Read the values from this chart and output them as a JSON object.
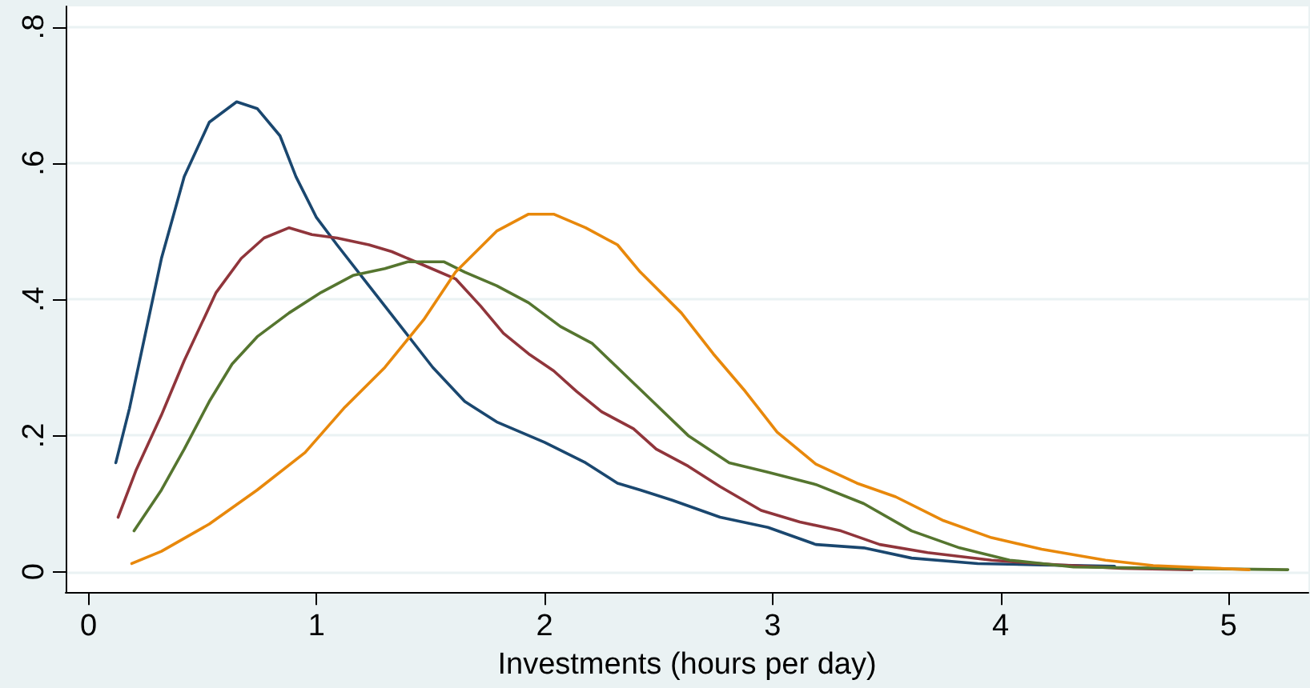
{
  "chart_data": {
    "type": "line",
    "xlabel": "Investments (hours per day)",
    "xlim": [
      -0.1,
      5.35
    ],
    "xticks": [
      0,
      1,
      2,
      3,
      4,
      5
    ],
    "ylim": [
      -0.03,
      0.83
    ],
    "yticks": [
      0,
      {
        "value": 0.2,
        "label": ".2"
      },
      {
        "value": 0.4,
        "label": ".4"
      },
      {
        "value": 0.6,
        "label": ".6"
      },
      {
        "value": 0.8,
        "label": ".8"
      }
    ],
    "grid": "y",
    "marker": "none",
    "line_style": "solid",
    "series": [
      {
        "color": "#1a476f",
        "x": [
          0.12,
          0.18,
          0.25,
          0.32,
          0.42,
          0.53,
          0.65,
          0.74,
          0.84,
          0.91,
          1.0,
          1.09,
          1.23,
          1.37,
          1.51,
          1.65,
          1.79,
          2.0,
          2.18,
          2.32,
          2.42,
          2.56,
          2.77,
          2.98,
          3.19,
          3.4,
          3.61,
          3.9,
          4.18,
          4.5
        ],
        "values": [
          0.16,
          0.24,
          0.35,
          0.46,
          0.58,
          0.66,
          0.69,
          0.68,
          0.64,
          0.58,
          0.52,
          0.48,
          0.42,
          0.36,
          0.3,
          0.25,
          0.22,
          0.19,
          0.16,
          0.13,
          0.12,
          0.105,
          0.08,
          0.065,
          0.04,
          0.035,
          0.02,
          0.012,
          0.01,
          0.008
        ]
      },
      {
        "color": "#90353b",
        "x": [
          0.13,
          0.21,
          0.32,
          0.42,
          0.56,
          0.67,
          0.77,
          0.88,
          0.98,
          1.09,
          1.23,
          1.33,
          1.47,
          1.61,
          1.72,
          1.82,
          1.93,
          2.04,
          2.14,
          2.25,
          2.39,
          2.49,
          2.63,
          2.77,
          2.95,
          3.12,
          3.3,
          3.47,
          3.68,
          3.96,
          4.25,
          4.53,
          4.84
        ],
        "values": [
          0.08,
          0.15,
          0.23,
          0.31,
          0.41,
          0.46,
          0.49,
          0.505,
          0.495,
          0.49,
          0.48,
          0.47,
          0.45,
          0.43,
          0.39,
          0.35,
          0.32,
          0.295,
          0.265,
          0.235,
          0.21,
          0.18,
          0.155,
          0.125,
          0.09,
          0.073,
          0.06,
          0.04,
          0.028,
          0.017,
          0.01,
          0.005,
          0.003
        ]
      },
      {
        "color": "#55752f",
        "x": [
          0.2,
          0.32,
          0.42,
          0.53,
          0.63,
          0.74,
          0.88,
          1.02,
          1.16,
          1.3,
          1.4,
          1.56,
          1.65,
          1.79,
          1.93,
          2.07,
          2.21,
          2.35,
          2.49,
          2.63,
          2.81,
          2.98,
          3.19,
          3.4,
          3.61,
          3.82,
          4.04,
          4.32,
          4.74,
          5.26
        ],
        "values": [
          0.06,
          0.12,
          0.18,
          0.25,
          0.305,
          0.345,
          0.38,
          0.41,
          0.435,
          0.445,
          0.455,
          0.455,
          0.44,
          0.42,
          0.395,
          0.36,
          0.335,
          0.29,
          0.245,
          0.2,
          0.16,
          0.146,
          0.128,
          0.1,
          0.06,
          0.035,
          0.017,
          0.007,
          0.005,
          0.003
        ]
      },
      {
        "color": "#e8880b",
        "x": [
          0.19,
          0.32,
          0.53,
          0.74,
          0.95,
          1.12,
          1.3,
          1.47,
          1.61,
          1.79,
          1.93,
          2.04,
          2.18,
          2.32,
          2.42,
          2.6,
          2.74,
          2.88,
          3.02,
          3.19,
          3.37,
          3.54,
          3.75,
          3.96,
          4.18,
          4.46,
          4.67,
          5.09
        ],
        "values": [
          0.012,
          0.03,
          0.07,
          0.12,
          0.175,
          0.24,
          0.3,
          0.37,
          0.44,
          0.5,
          0.525,
          0.525,
          0.505,
          0.48,
          0.44,
          0.38,
          0.32,
          0.265,
          0.205,
          0.158,
          0.13,
          0.11,
          0.075,
          0.05,
          0.033,
          0.017,
          0.009,
          0.003
        ]
      }
    ]
  }
}
